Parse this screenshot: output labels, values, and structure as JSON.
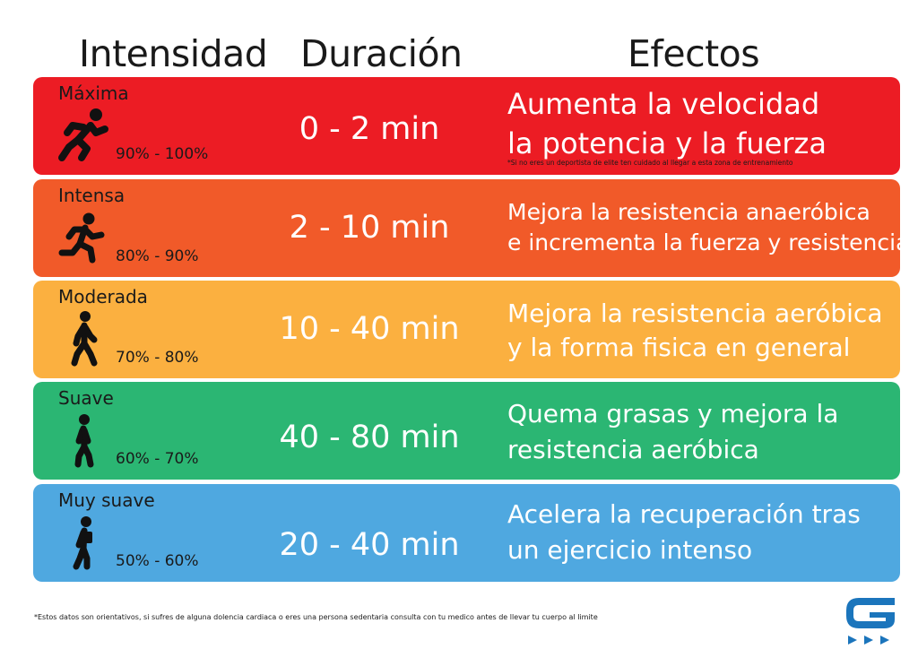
{
  "header": {
    "intensity": "Intensidad",
    "duration": "Duración",
    "effects": "Efectos"
  },
  "rows": [
    {
      "level": "Máxima",
      "percent": "90% - 100%",
      "duration": "0 - 2 min",
      "effect_line1": "Aumenta la velocidad",
      "effect_line2": "la potencia y la fuerza",
      "note": "*Si no eres un deportista de elite ten cuidado al llegar a esta zona de entrenamiento",
      "color": "#ec1c24",
      "icon": "sprinting-person-icon"
    },
    {
      "level": "Intensa",
      "percent": "80% - 90%",
      "duration": "2 - 10 min",
      "effect_line1": "Mejora la resistencia anaeróbica",
      "effect_line2": "e incrementa la fuerza y resistencia",
      "color": "#f15a29",
      "icon": "running-person-icon"
    },
    {
      "level": "Moderada",
      "percent": "70% - 80%",
      "duration": "10 - 40 min",
      "effect_line1": "Mejora la resistencia aeróbica",
      "effect_line2": "y la forma fisica en general",
      "color": "#fbb040",
      "icon": "brisk-walking-person-icon"
    },
    {
      "level": "Suave",
      "percent": "60% - 70%",
      "duration": "40 - 80 min",
      "effect_line1": "Quema grasas y mejora la",
      "effect_line2": "resistencia aeróbica",
      "color": "#2bb673",
      "icon": "walking-person-icon"
    },
    {
      "level": "Muy suave",
      "percent": "50% - 60%",
      "duration": "20 - 40 min",
      "effect_line1": "Acelera la recuperación tras",
      "effect_line2": "un ejercicio intenso",
      "color": "#4fa8e0",
      "icon": "slow-walking-person-icon"
    }
  ],
  "footnote": "*Estos datos son orientativos, si sufres de alguna dolencia cardiaca o eres una persona sedentaria consulta con tu medico antes de llevar tu cuerpo al limite",
  "logo": {
    "icon": "g-brand-logo-icon",
    "color": "#1b75bc"
  }
}
